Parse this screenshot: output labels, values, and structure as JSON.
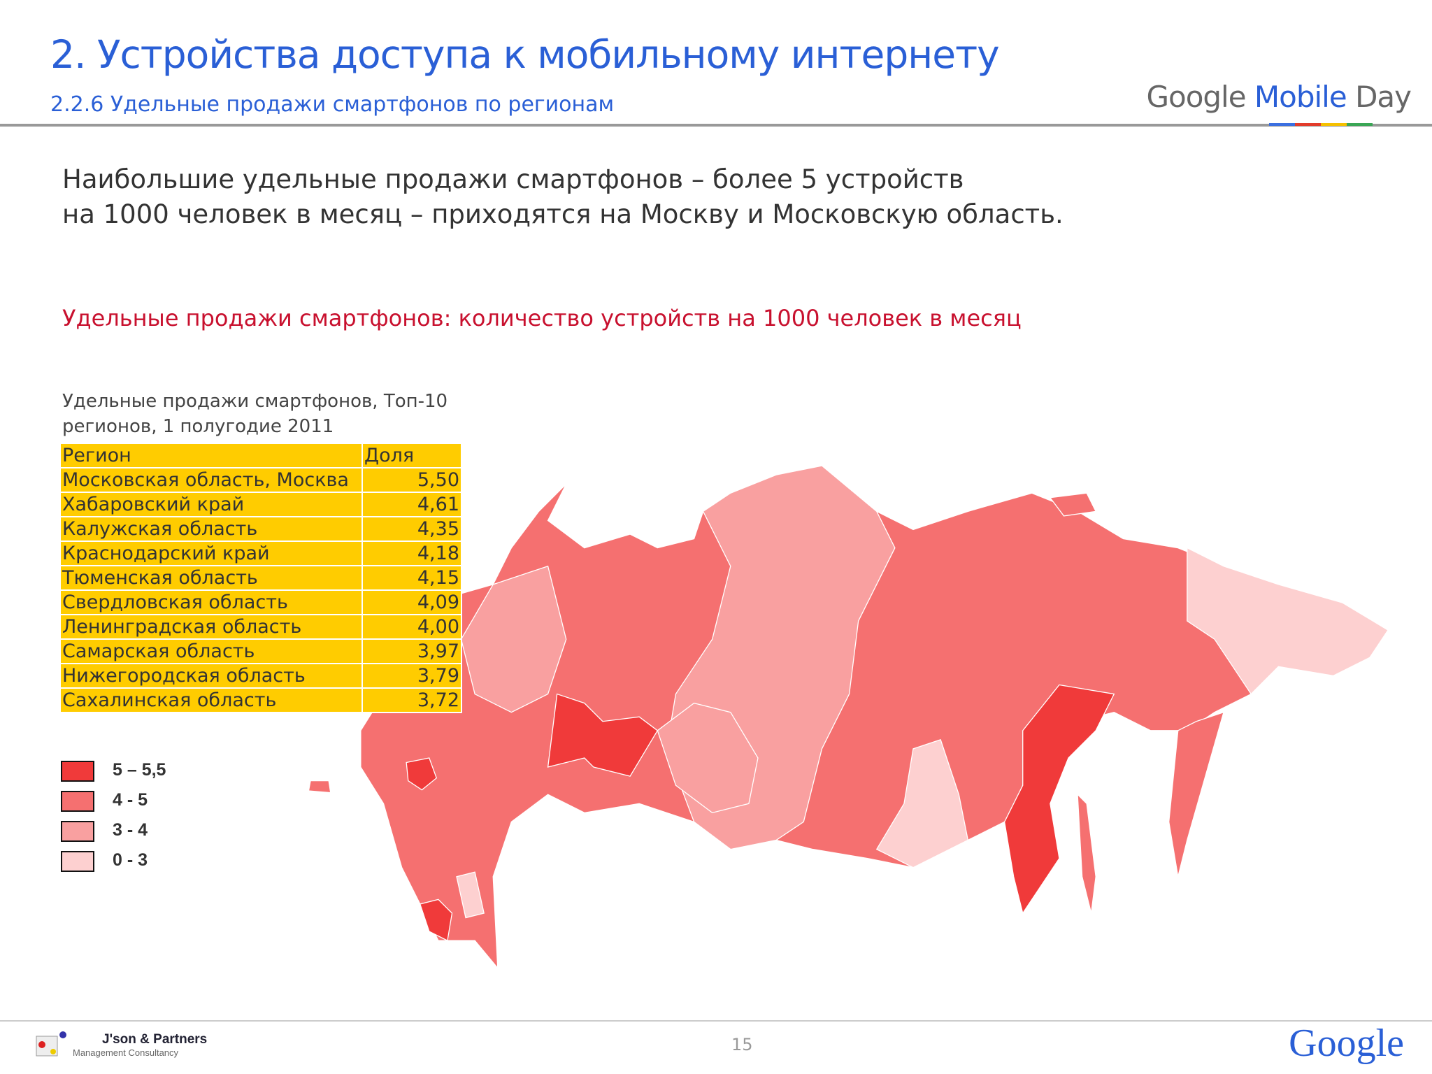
{
  "header": {
    "title": "2. Устройства доступа к мобильному интернету",
    "subtitle": "2.2.6 Удельные продажи смартфонов по регионам",
    "logo": {
      "brand": "Google",
      "product": "Mobile",
      "suffix": "Day"
    }
  },
  "lead": [
    "Наибольшие удельные продажи смартфонов – более 5 устройств",
    "на 1000 человек в месяц – приходятся на Москву и Московскую область."
  ],
  "chart_heading": "Удельные продажи смартфонов: количество устройств на 1000 человек в месяц",
  "table": {
    "caption": [
      "Удельные продажи смартфонов, Топ-10",
      "регионов, 1 полугодие 2011"
    ],
    "header": [
      "Регион",
      "Доля"
    ],
    "rows": [
      [
        "Московская область, Москва",
        "5,50"
      ],
      [
        "Хабаровский край",
        "4,61"
      ],
      [
        "Калужская область",
        "4,35"
      ],
      [
        "Краснодарский край",
        "4,18"
      ],
      [
        "Тюменская область",
        "4,15"
      ],
      [
        "Свердловская область",
        "4,09"
      ],
      [
        "Ленинградская область",
        "4,00"
      ],
      [
        "Самарская область",
        "3,97"
      ],
      [
        "Нижегородская область",
        "3,79"
      ],
      [
        "Сахалинская область",
        "3,72"
      ]
    ]
  },
  "legend": [
    {
      "label": "5 – 5,5",
      "color": "#f03a3a"
    },
    {
      "label": "4 - 5",
      "color": "#f57070"
    },
    {
      "label": "3 - 4",
      "color": "#f9a0a0"
    },
    {
      "label": "0 - 3",
      "color": "#fdd0d0"
    }
  ],
  "footer": {
    "company": "J'son & Partners",
    "company_sub": "Management Consultancy",
    "page": "15",
    "logo": "Google"
  }
}
